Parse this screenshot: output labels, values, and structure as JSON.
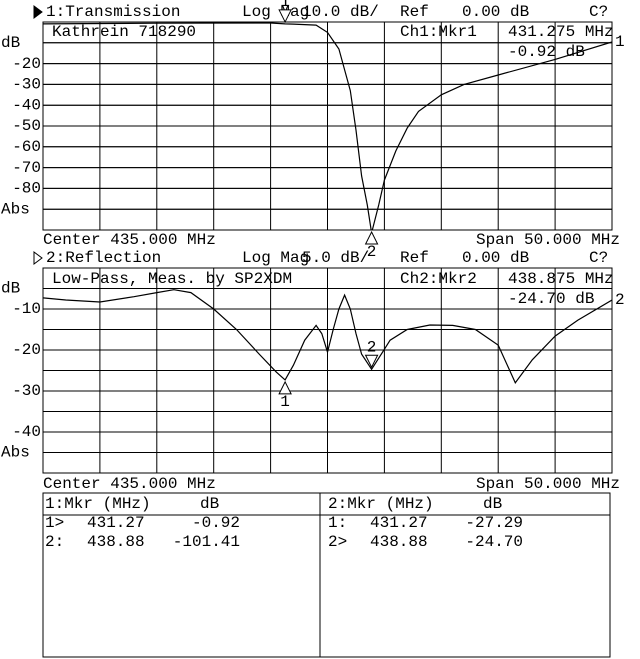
{
  "chart_data": [
    {
      "type": "line",
      "title": "1:Transmission",
      "format": "Log Mag",
      "scale": "10.0 dB/",
      "ref_label": "Ref",
      "ref": "0.00 dB",
      "cal": "C?",
      "subtitle": "Kathrein 718290",
      "readout": {
        "channel": "Ch1:Mkr1",
        "freq": "431.275 MHz",
        "value": "-0.92 dB"
      },
      "center": "Center 435.000 MHz",
      "span": "Span 50.000 MHz",
      "active": true,
      "xlim": [
        410,
        460
      ],
      "ylim": [
        -100,
        0
      ],
      "yticks": [
        {
          "value": -10,
          "label": "dB"
        },
        -20,
        -30,
        -40,
        -50,
        -60,
        -70,
        -80,
        {
          "value": -90,
          "label": "Abs"
        }
      ],
      "grid": true,
      "x": [
        410,
        420,
        430,
        431.275,
        432,
        434,
        435,
        436,
        437,
        437.5,
        438,
        438.5,
        438.875,
        439.5,
        440,
        441,
        442,
        443,
        445,
        447,
        450,
        455,
        460
      ],
      "series": [
        {
          "name": "1",
          "color": "#000000",
          "values": [
            -0.9,
            -0.6,
            -0.5,
            -0.92,
            -1,
            -1.5,
            -5,
            -13,
            -33,
            -52,
            -74,
            -88,
            -101.41,
            -88,
            -76,
            -62,
            -51,
            -43,
            -35,
            -30,
            -25.5,
            -18,
            -9.6
          ]
        }
      ],
      "markers": [
        {
          "name": "1",
          "x": 431.275,
          "value": -0.92,
          "active": true
        },
        {
          "name": "2",
          "x": 438.875,
          "value": -101.41,
          "active": false
        }
      ]
    },
    {
      "type": "line",
      "title": "2:Reflection",
      "format": "Log Mag",
      "scale": "5.0 dB/",
      "ref_label": "Ref",
      "ref": "0.00 dB",
      "cal": "C?",
      "subtitle": "Low-Pass, Meas. by SP2XDM",
      "readout": {
        "channel": "Ch2:Mkr2",
        "freq": "438.875 MHz",
        "value": "-24.70 dB"
      },
      "center": "Center 435.000 MHz",
      "span": "Span 50.000 MHz",
      "active": false,
      "xlim": [
        410,
        460
      ],
      "ylim": [
        -50,
        0
      ],
      "yticks": [
        {
          "value": -5,
          "label": "dB"
        },
        -10,
        -20,
        -30,
        -40,
        {
          "value": -45,
          "label": "Abs"
        }
      ],
      "grid": true,
      "x": [
        410,
        412,
        415,
        418,
        420,
        421.5,
        423,
        425,
        427,
        429,
        430.5,
        431.275,
        432,
        433,
        434,
        434.5,
        435,
        435.5,
        436,
        436.5,
        437,
        437.5,
        438,
        438.875,
        439.5,
        440.5,
        442,
        444,
        446,
        448,
        450,
        451.5,
        453,
        455,
        457,
        460
      ],
      "series": [
        {
          "name": "2",
          "color": "#000000",
          "values": [
            -7.3,
            -7.8,
            -8.3,
            -7,
            -6,
            -5.3,
            -6,
            -10,
            -15,
            -21,
            -25.4,
            -27.29,
            -23.7,
            -17.6,
            -14,
            -16,
            -20.5,
            -15,
            -10,
            -6.6,
            -10,
            -16,
            -21,
            -24.7,
            -22,
            -17.6,
            -15,
            -13.9,
            -14,
            -15,
            -18.8,
            -28,
            -22.4,
            -16.6,
            -12.7,
            -7.8
          ]
        }
      ],
      "markers": [
        {
          "name": "1",
          "x": 431.275,
          "value": -27.29,
          "active": false
        },
        {
          "name": "2",
          "x": 438.875,
          "value": -24.7,
          "active": true
        }
      ]
    }
  ],
  "marker_table": [
    {
      "header": [
        "1:Mkr (MHz)",
        "dB"
      ],
      "rows": [
        [
          "1>",
          "431.27",
          "-0.92"
        ],
        [
          "2:",
          "438.88",
          "-101.41"
        ]
      ]
    },
    {
      "header": [
        "2:Mkr (MHz)",
        "dB"
      ],
      "rows": [
        [
          "1:",
          "431.27",
          "-27.29"
        ],
        [
          "2>",
          "438.88",
          "-24.70"
        ]
      ]
    }
  ]
}
